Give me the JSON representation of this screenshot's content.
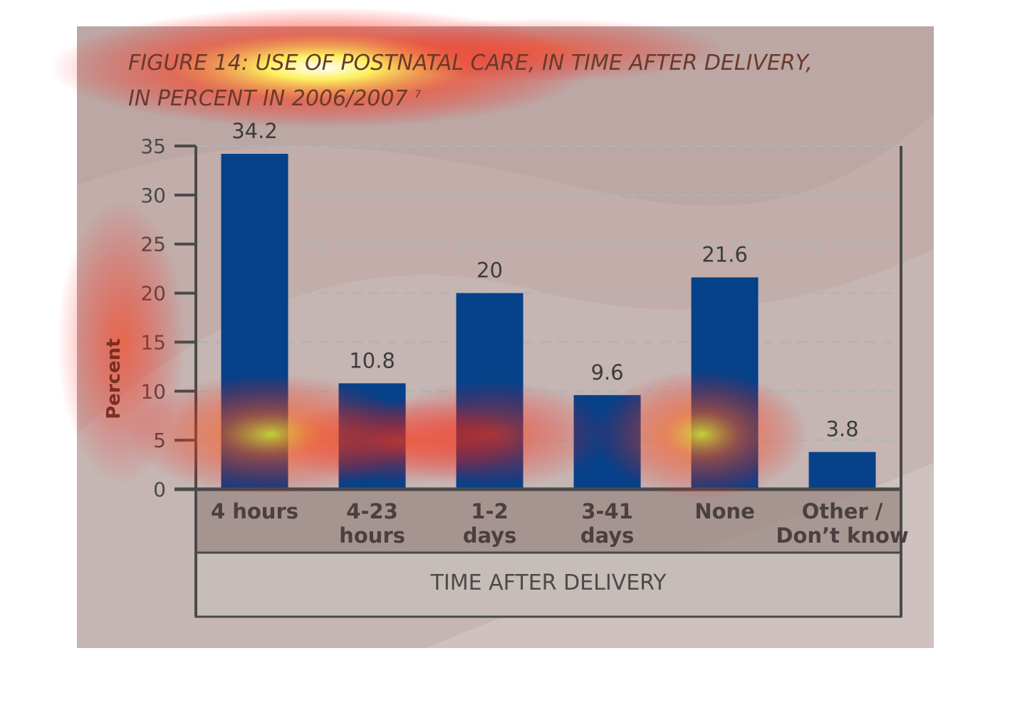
{
  "figure": {
    "title_line1": "FIGURE 14: USE OF POSTNATAL CARE, IN TIME AFTER DELIVERY,",
    "title_line2": "IN PERCENT IN 2006/2007",
    "title_superscript": "7"
  },
  "chart_data": {
    "type": "bar",
    "categories": [
      [
        "4 hours"
      ],
      [
        "4-23",
        "hours"
      ],
      [
        "1-2",
        "days"
      ],
      [
        "3-41",
        "days"
      ],
      [
        "None"
      ],
      [
        "Other /",
        "Don’t know"
      ]
    ],
    "values": [
      34.2,
      10.8,
      20,
      9.6,
      21.6,
      3.8
    ],
    "value_labels": [
      "34.2",
      "10.8",
      "20",
      "9.6",
      "21.6",
      "3.8"
    ],
    "xlabel": "TIME AFTER DELIVERY",
    "ylabel": "Percent",
    "ylim": [
      0,
      35
    ],
    "yticks": [
      0,
      5,
      10,
      15,
      20,
      25,
      30,
      35
    ],
    "grid": "horizontal dashed",
    "colors": {
      "bar": "#06418a",
      "background": "#c2adaa",
      "category_band": "#9b8a86",
      "xlabel_band": "#c6bcb8",
      "axis": "#4a4a4a",
      "title": "#6a3a2c",
      "grid": "#aab7b8"
    }
  }
}
